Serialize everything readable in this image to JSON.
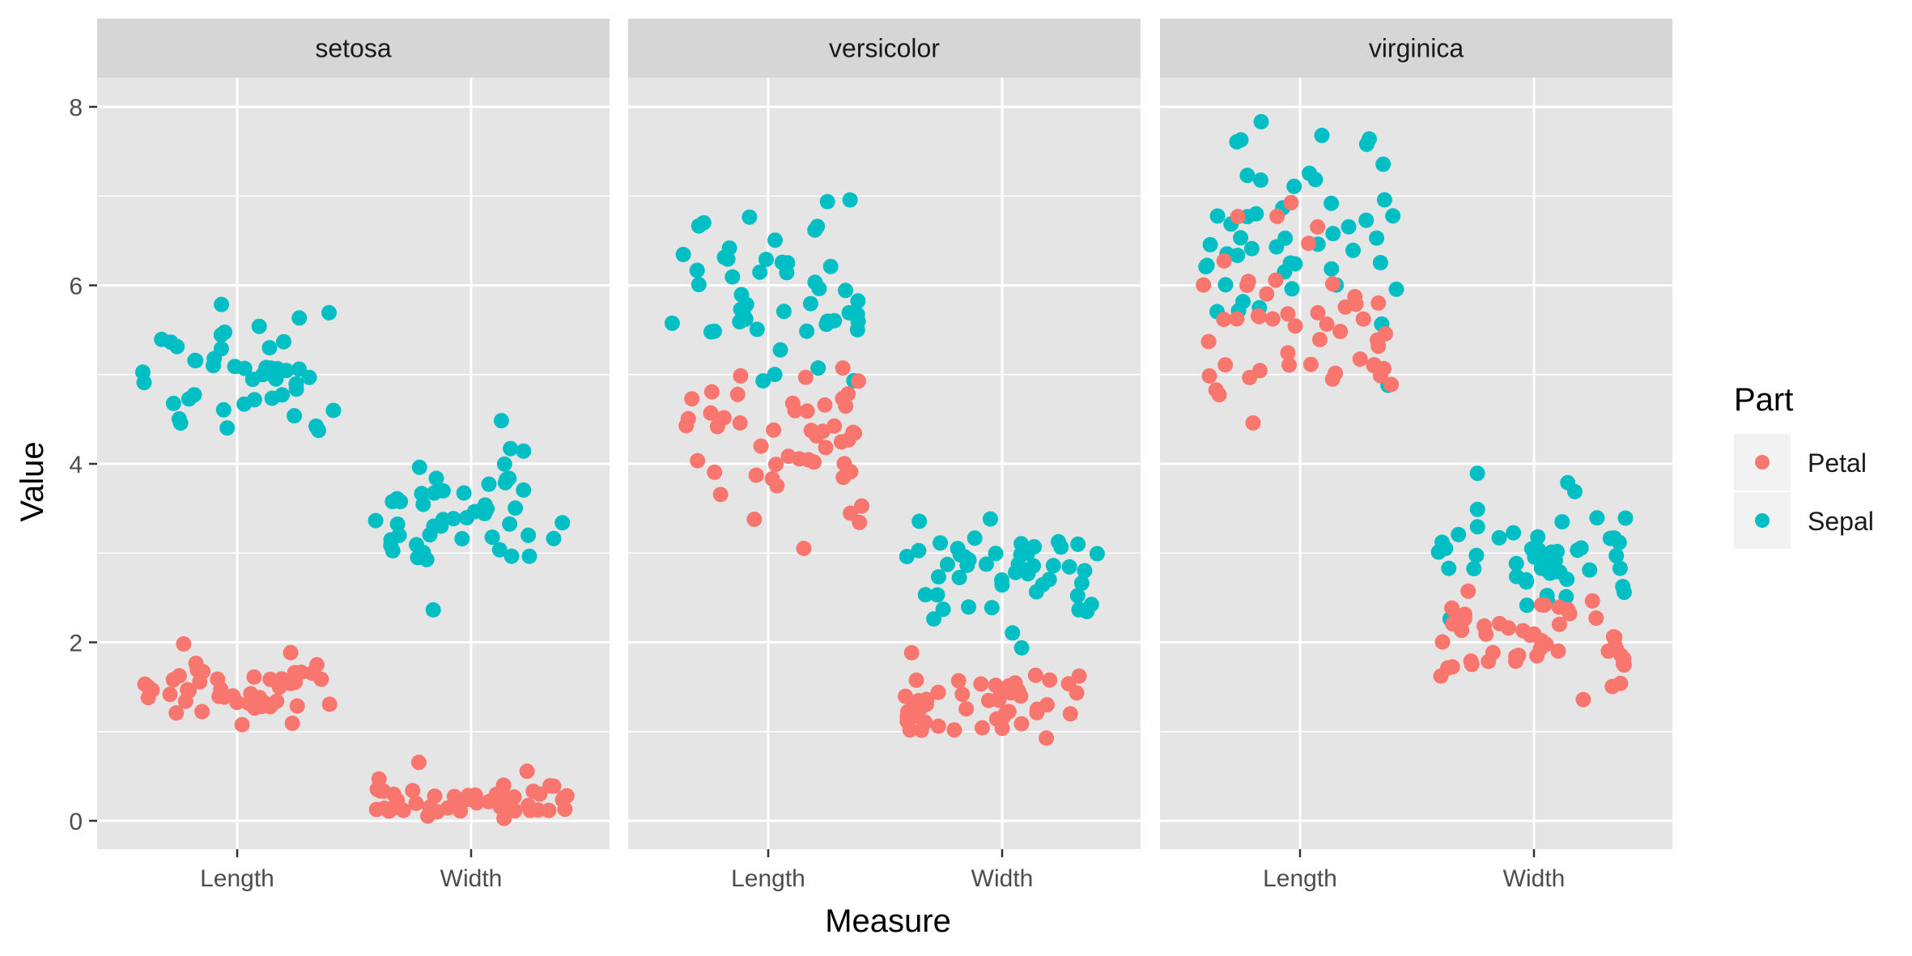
{
  "colors": {
    "Petal": "#F8766D",
    "Sepal": "#00BFC4",
    "panel_bg": "#E5E5E5",
    "strip_bg": "#D6D6D6",
    "grid": "#FFFFFF"
  },
  "chart_data": {
    "type": "scatter",
    "jitter": true,
    "title": "",
    "xlabel": "Measure",
    "ylabel": "Value",
    "ylim": [
      -0.3,
      8.4
    ],
    "yticks": [
      0,
      2,
      4,
      6,
      8
    ],
    "categories": [
      "Length",
      "Width"
    ],
    "grid": true,
    "legend": {
      "title": "Part",
      "position": "right",
      "entries": [
        "Petal",
        "Sepal"
      ]
    },
    "facets": [
      {
        "name": "setosa",
        "series": [
          {
            "name": "Sepal",
            "category": "Length",
            "values": [
              5.1,
              4.9,
              4.7,
              4.6,
              5.0,
              5.4,
              4.6,
              5.0,
              4.4,
              4.9,
              5.4,
              4.8,
              4.8,
              4.3,
              5.8,
              5.7,
              5.4,
              5.1,
              5.7,
              5.1,
              5.4,
              5.1,
              4.6,
              5.1,
              4.8,
              5.0,
              5.0,
              5.2,
              5.2,
              4.7,
              4.8,
              5.4,
              5.2,
              5.5,
              4.9,
              5.0,
              5.5,
              4.9,
              4.4,
              5.1,
              5.0,
              4.5,
              4.4,
              5.0,
              5.1,
              4.8,
              5.1,
              4.6,
              5.3,
              5.0
            ]
          },
          {
            "name": "Sepal",
            "category": "Width",
            "values": [
              3.5,
              3.0,
              3.2,
              3.1,
              3.6,
              3.9,
              3.4,
              3.4,
              2.9,
              3.1,
              3.7,
              3.4,
              3.0,
              3.0,
              4.0,
              4.4,
              3.9,
              3.5,
              3.8,
              3.8,
              3.4,
              3.7,
              3.6,
              3.3,
              3.4,
              3.0,
              3.4,
              3.5,
              3.4,
              3.2,
              3.1,
              3.4,
              4.1,
              4.2,
              3.1,
              3.2,
              3.5,
              3.6,
              3.0,
              3.4,
              3.5,
              2.3,
              3.2,
              3.5,
              3.8,
              3.0,
              3.8,
              3.2,
              3.7,
              3.3
            ]
          },
          {
            "name": "Petal",
            "category": "Length",
            "values": [
              1.4,
              1.4,
              1.3,
              1.5,
              1.4,
              1.7,
              1.4,
              1.5,
              1.4,
              1.5,
              1.5,
              1.6,
              1.4,
              1.1,
              1.2,
              1.5,
              1.3,
              1.4,
              1.7,
              1.5,
              1.7,
              1.5,
              1.0,
              1.7,
              1.9,
              1.6,
              1.6,
              1.5,
              1.4,
              1.6,
              1.6,
              1.5,
              1.5,
              1.4,
              1.5,
              1.2,
              1.3,
              1.4,
              1.3,
              1.5,
              1.3,
              1.3,
              1.3,
              1.6,
              1.9,
              1.4,
              1.6,
              1.4,
              1.5,
              1.4
            ]
          },
          {
            "name": "Petal",
            "category": "Width",
            "values": [
              0.2,
              0.2,
              0.2,
              0.2,
              0.2,
              0.4,
              0.3,
              0.2,
              0.2,
              0.1,
              0.2,
              0.2,
              0.1,
              0.1,
              0.2,
              0.4,
              0.4,
              0.3,
              0.3,
              0.3,
              0.2,
              0.4,
              0.2,
              0.5,
              0.2,
              0.2,
              0.4,
              0.2,
              0.2,
              0.2,
              0.2,
              0.4,
              0.1,
              0.2,
              0.2,
              0.2,
              0.2,
              0.1,
              0.2,
              0.2,
              0.3,
              0.3,
              0.2,
              0.6,
              0.4,
              0.3,
              0.2,
              0.2,
              0.2,
              0.2
            ]
          }
        ]
      },
      {
        "name": "versicolor",
        "series": [
          {
            "name": "Sepal",
            "category": "Length",
            "values": [
              7.0,
              6.4,
              6.9,
              5.5,
              6.5,
              5.7,
              6.3,
              4.9,
              6.6,
              5.2,
              5.0,
              5.9,
              6.0,
              6.1,
              5.6,
              6.7,
              5.6,
              5.8,
              6.2,
              5.6,
              5.9,
              6.1,
              6.3,
              6.1,
              6.4,
              6.6,
              6.8,
              6.7,
              6.0,
              5.7,
              5.5,
              5.5,
              5.8,
              6.0,
              5.4,
              6.0,
              6.7,
              6.3,
              5.6,
              5.5,
              5.5,
              6.1,
              5.8,
              5.0,
              5.6,
              5.7,
              5.7,
              6.2,
              5.1,
              5.7
            ]
          },
          {
            "name": "Sepal",
            "category": "Width",
            "values": [
              3.2,
              3.2,
              3.1,
              2.3,
              2.8,
              2.8,
              3.3,
              2.4,
              2.9,
              2.7,
              2.0,
              3.0,
              2.2,
              2.9,
              2.9,
              3.1,
              3.0,
              2.7,
              2.2,
              2.5,
              3.2,
              2.8,
              2.5,
              2.8,
              2.9,
              3.0,
              2.8,
              3.0,
              2.9,
              2.6,
              2.4,
              2.4,
              2.7,
              2.7,
              3.0,
              3.4,
              3.1,
              2.3,
              3.0,
              2.5,
              2.6,
              3.0,
              2.6,
              2.3,
              2.7,
              3.0,
              2.9,
              2.9,
              2.5,
              2.8
            ]
          },
          {
            "name": "Petal",
            "category": "Length",
            "values": [
              4.7,
              4.5,
              4.9,
              4.0,
              4.6,
              4.5,
              4.7,
              3.3,
              4.6,
              3.9,
              3.5,
              4.2,
              4.0,
              4.7,
              3.6,
              4.4,
              4.5,
              4.1,
              4.5,
              3.9,
              4.8,
              4.0,
              4.9,
              4.7,
              4.3,
              4.4,
              4.8,
              5.0,
              4.5,
              3.5,
              3.8,
              3.7,
              3.9,
              5.1,
              4.5,
              4.5,
              4.7,
              4.4,
              4.1,
              4.0,
              4.4,
              4.6,
              4.0,
              3.3,
              4.2,
              4.2,
              4.2,
              4.3,
              3.0,
              4.1
            ]
          },
          {
            "name": "Petal",
            "category": "Width",
            "values": [
              1.4,
              1.5,
              1.5,
              1.3,
              1.5,
              1.3,
              1.6,
              1.0,
              1.3,
              1.4,
              1.0,
              1.5,
              1.0,
              1.4,
              1.3,
              1.4,
              1.5,
              1.0,
              1.5,
              1.1,
              1.8,
              1.3,
              1.5,
              1.2,
              1.3,
              1.4,
              1.4,
              1.7,
              1.5,
              1.0,
              1.1,
              1.0,
              1.2,
              1.6,
              1.5,
              1.6,
              1.5,
              1.3,
              1.3,
              1.3,
              1.2,
              1.4,
              1.2,
              1.0,
              1.3,
              1.2,
              1.3,
              1.3,
              1.1,
              1.3
            ]
          }
        ]
      },
      {
        "name": "virginica",
        "series": [
          {
            "name": "Sepal",
            "category": "Length",
            "values": [
              6.3,
              5.8,
              7.1,
              6.3,
              6.5,
              7.6,
              4.9,
              7.3,
              6.7,
              7.2,
              6.5,
              6.4,
              6.8,
              5.7,
              5.8,
              6.4,
              6.5,
              7.7,
              7.7,
              6.0,
              6.9,
              5.6,
              7.7,
              6.3,
              6.7,
              7.2,
              6.2,
              6.1,
              6.4,
              7.2,
              7.4,
              7.9,
              6.4,
              6.3,
              6.1,
              7.7,
              6.3,
              6.4,
              6.0,
              6.9,
              6.7,
              6.9,
              5.8,
              6.8,
              6.7,
              6.7,
              6.3,
              6.5,
              6.2,
              5.9
            ]
          },
          {
            "name": "Sepal",
            "category": "Width",
            "values": [
              3.3,
              2.7,
              3.0,
              2.9,
              3.0,
              3.0,
              2.5,
              2.9,
              2.5,
              3.6,
              3.2,
              2.7,
              3.0,
              2.5,
              2.8,
              3.2,
              3.0,
              3.8,
              2.6,
              2.2,
              3.2,
              2.8,
              2.8,
              2.7,
              3.3,
              3.2,
              2.8,
              3.0,
              2.8,
              3.0,
              2.8,
              3.8,
              2.8,
              2.8,
              2.6,
              3.0,
              3.4,
              3.1,
              3.0,
              3.1,
              3.1,
              3.1,
              2.7,
              3.2,
              3.3,
              3.0,
              2.5,
              3.0,
              3.4,
              3.0
            ]
          },
          {
            "name": "Petal",
            "category": "Length",
            "values": [
              6.0,
              5.1,
              5.9,
              5.6,
              5.8,
              6.6,
              4.5,
              6.3,
              5.8,
              6.1,
              5.1,
              5.3,
              5.5,
              5.0,
              5.1,
              5.3,
              5.5,
              6.7,
              6.9,
              5.0,
              5.7,
              4.9,
              6.7,
              4.9,
              5.7,
              6.0,
              4.8,
              4.9,
              5.6,
              5.8,
              6.1,
              6.4,
              5.6,
              5.1,
              5.6,
              6.1,
              5.6,
              5.5,
              4.8,
              5.4,
              5.6,
              5.1,
              5.1,
              5.9,
              5.7,
              5.2,
              5.0,
              5.2,
              5.4,
              5.1
            ]
          },
          {
            "name": "Petal",
            "category": "Width",
            "values": [
              2.5,
              1.9,
              2.1,
              1.8,
              2.2,
              2.1,
              1.7,
              1.8,
              1.8,
              2.5,
              2.0,
              1.9,
              2.1,
              2.0,
              2.4,
              2.3,
              1.8,
              2.2,
              2.3,
              1.5,
              2.3,
              2.0,
              2.0,
              1.8,
              2.1,
              1.8,
              1.8,
              1.8,
              2.1,
              1.6,
              1.9,
              2.0,
              2.2,
              1.5,
              1.4,
              2.3,
              2.4,
              1.8,
              1.8,
              2.1,
              2.4,
              2.3,
              1.9,
              2.3,
              2.5,
              2.3,
              1.9,
              2.0,
              2.3,
              1.8
            ]
          }
        ]
      }
    ]
  }
}
